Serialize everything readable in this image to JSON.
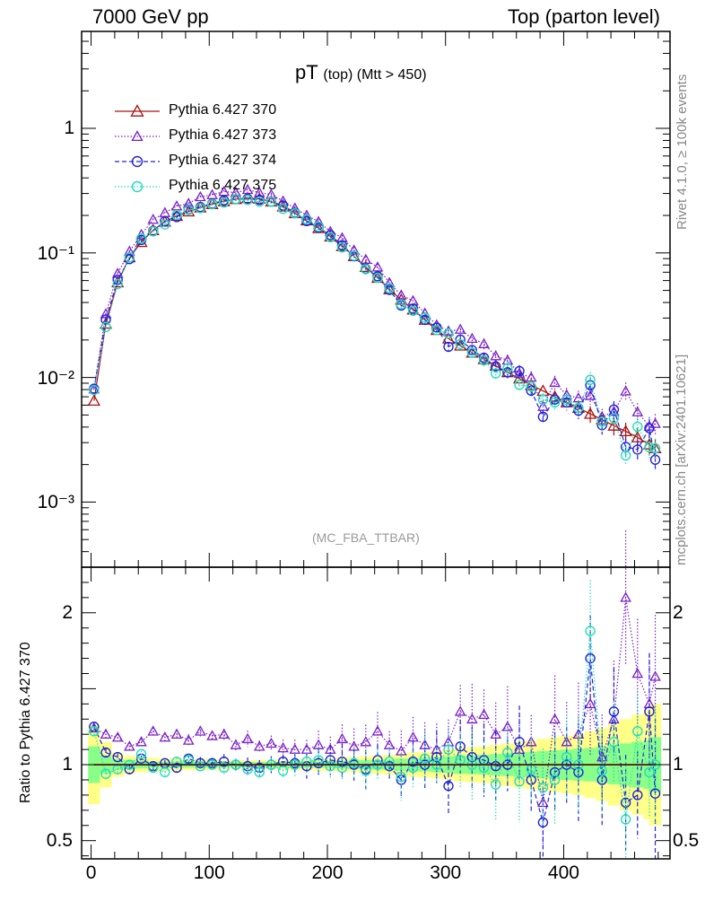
{
  "header": {
    "left": "7000 GeV pp",
    "right": "Top (parton level)"
  },
  "side_labels": {
    "rivet": "Rivet 4.1.0, ≥ 100k events",
    "mcplots": "mcplots.cern.ch [arXiv:2401.10621]"
  },
  "chart_data": [
    {
      "type": "line",
      "title_main": "pT",
      "title_sub": "(top) (Mtt > 450)",
      "watermark": "(MC_FBA_TTBAR)",
      "yscale": "log",
      "ylim": [
        0.0003,
        6
      ],
      "xlim": [
        -8,
        490
      ],
      "y_ticks": [
        {
          "value": 1,
          "label": "1"
        },
        {
          "value": 0.1,
          "label": "10⁻¹"
        },
        {
          "value": 0.01,
          "label": "10⁻²"
        },
        {
          "value": 0.001,
          "label": "10⁻³"
        }
      ],
      "legend_position": "top-left",
      "series": [
        {
          "name": "Pythia 6.427 370",
          "color": "#aa1111",
          "marker": "triangle",
          "dash": "solid"
        },
        {
          "name": "Pythia 6.427 373",
          "color": "#7a1fc9",
          "marker": "triangle",
          "dash": "dotted"
        },
        {
          "name": "Pythia 6.427 374",
          "color": "#2222dd",
          "marker": "circle",
          "dash": "dashed"
        },
        {
          "name": "Pythia 6.427 375",
          "color": "#22ddbb",
          "marker": "circle",
          "dash": "dotted"
        }
      ],
      "x": [
        2.5,
        12.5,
        22.5,
        32.5,
        42.5,
        52.5,
        62.5,
        72.5,
        82.5,
        92.5,
        102.5,
        112.5,
        122.5,
        132.5,
        142.5,
        152.5,
        162.5,
        172.5,
        182.5,
        192.5,
        202.5,
        212.5,
        222.5,
        232.5,
        242.5,
        252.5,
        262.5,
        272.5,
        282.5,
        292.5,
        302.5,
        312.5,
        322.5,
        332.5,
        342.5,
        352.5,
        362.5,
        372.5,
        382.5,
        392.5,
        402.5,
        412.5,
        422.5,
        432.5,
        442.5,
        452.5,
        462.5,
        472.5,
        477.5
      ],
      "reference_values": [
        0.0065,
        0.027,
        0.058,
        0.092,
        0.122,
        0.152,
        0.178,
        0.198,
        0.215,
        0.231,
        0.246,
        0.259,
        0.27,
        0.275,
        0.272,
        0.258,
        0.235,
        0.208,
        0.182,
        0.158,
        0.135,
        0.113,
        0.094,
        0.077,
        0.063,
        0.051,
        0.042,
        0.035,
        0.029,
        0.024,
        0.0205,
        0.018,
        0.0158,
        0.014,
        0.0124,
        0.011,
        0.0098,
        0.0087,
        0.0078,
        0.007,
        0.0063,
        0.0057,
        0.0051,
        0.0046,
        0.0041,
        0.0037,
        0.0033,
        0.0029,
        0.0027
      ]
    },
    {
      "type": "line",
      "ylabel": "Ratio to Pythia 6.427 370",
      "ylim": [
        0.38,
        2.3
      ],
      "xlim": [
        -8,
        490
      ],
      "y_ticks": [
        {
          "value": 2,
          "label": "2"
        },
        {
          "value": 1,
          "label": "1"
        },
        {
          "value": 0.5,
          "label": "0.5"
        }
      ],
      "x_ticks": [
        {
          "value": 0,
          "label": "0"
        },
        {
          "value": 100,
          "label": "100"
        },
        {
          "value": 200,
          "label": "200"
        },
        {
          "value": 300,
          "label": "300"
        },
        {
          "value": 400,
          "label": "400"
        }
      ],
      "band_yellow_halfwidth": [
        0.26,
        0.15,
        0.08,
        0.06,
        0.05,
        0.045,
        0.04,
        0.04,
        0.035,
        0.035,
        0.035,
        0.03,
        0.03,
        0.03,
        0.03,
        0.03,
        0.03,
        0.035,
        0.035,
        0.04,
        0.04,
        0.045,
        0.05,
        0.055,
        0.06,
        0.065,
        0.07,
        0.08,
        0.085,
        0.09,
        0.1,
        0.11,
        0.115,
        0.12,
        0.13,
        0.14,
        0.15,
        0.16,
        0.17,
        0.18,
        0.19,
        0.2,
        0.22,
        0.24,
        0.27,
        0.3,
        0.33,
        0.36,
        0.4
      ],
      "band_green_halfwidth": [
        0.12,
        0.06,
        0.035,
        0.03,
        0.025,
        0.02,
        0.02,
        0.02,
        0.02,
        0.018,
        0.018,
        0.018,
        0.018,
        0.018,
        0.018,
        0.018,
        0.018,
        0.02,
        0.02,
        0.02,
        0.022,
        0.025,
        0.028,
        0.03,
        0.032,
        0.035,
        0.04,
        0.042,
        0.045,
        0.05,
        0.055,
        0.06,
        0.062,
        0.065,
        0.07,
        0.075,
        0.08,
        0.085,
        0.09,
        0.095,
        0.1,
        0.105,
        0.11,
        0.12,
        0.13,
        0.14,
        0.15,
        0.16,
        0.18
      ],
      "ratios": [
        [
          1,
          1,
          1,
          1,
          1,
          1,
          1,
          1,
          1,
          1,
          1,
          1,
          1,
          1,
          1,
          1,
          1,
          1,
          1,
          1,
          1,
          1,
          1,
          1,
          1,
          1,
          1,
          1,
          1,
          1,
          1,
          1,
          1,
          1,
          1,
          1,
          1,
          1,
          1,
          1,
          1,
          1,
          1,
          1,
          1,
          1,
          1,
          1,
          1
        ],
        [
          1.24,
          1.2,
          1.18,
          1.12,
          1.15,
          1.22,
          1.18,
          1.2,
          1.16,
          1.22,
          1.19,
          1.2,
          1.13,
          1.17,
          1.12,
          1.14,
          1.11,
          1.1,
          1.1,
          1.13,
          1.1,
          1.17,
          1.12,
          1.15,
          1.22,
          1.13,
          1.09,
          1.18,
          1.13,
          1.1,
          1.15,
          1.35,
          1.3,
          1.33,
          1.2,
          1.25,
          1.1,
          1.15,
          0.75,
          1.3,
          1.15,
          1.2,
          1.4,
          1.05,
          1.3,
          2.1,
          1.6,
          1.4,
          1.58
        ],
        [
          1.25,
          1.08,
          1.05,
          0.97,
          1.04,
          0.99,
          1.01,
          0.98,
          1.04,
          1.01,
          1.01,
          1.02,
          1.0,
          0.99,
          0.98,
          1.0,
          1.02,
          1.01,
          0.99,
          1.01,
          1.03,
          1.02,
          1.0,
          0.97,
          1.03,
          0.99,
          0.9,
          1.02,
          1.0,
          1.05,
          0.86,
          1.12,
          1.05,
          1.03,
          0.99,
          1.0,
          1.15,
          0.9,
          0.62,
          0.95,
          1.0,
          0.95,
          1.7,
          0.9,
          1.35,
          0.75,
          0.8,
          1.35,
          0.81
        ],
        [
          1.22,
          0.94,
          0.97,
          1.0,
          1.07,
          0.98,
          0.95,
          1.02,
          1.03,
          0.99,
          1.0,
          0.98,
          1.0,
          0.97,
          0.95,
          1.0,
          0.96,
          1.0,
          1.02,
          1.03,
          0.99,
          0.98,
          1.01,
          0.96,
          1.0,
          1.02,
          0.92,
          0.98,
          1.04,
          1.0,
          1.1,
          1.03,
          1.0,
          0.98,
          0.87,
          1.08,
          0.89,
          0.97,
          0.85,
          0.9,
          1.05,
          1.0,
          1.88,
          0.96,
          1.15,
          0.64,
          1.22,
          0.95,
          1.0
        ]
      ]
    }
  ]
}
